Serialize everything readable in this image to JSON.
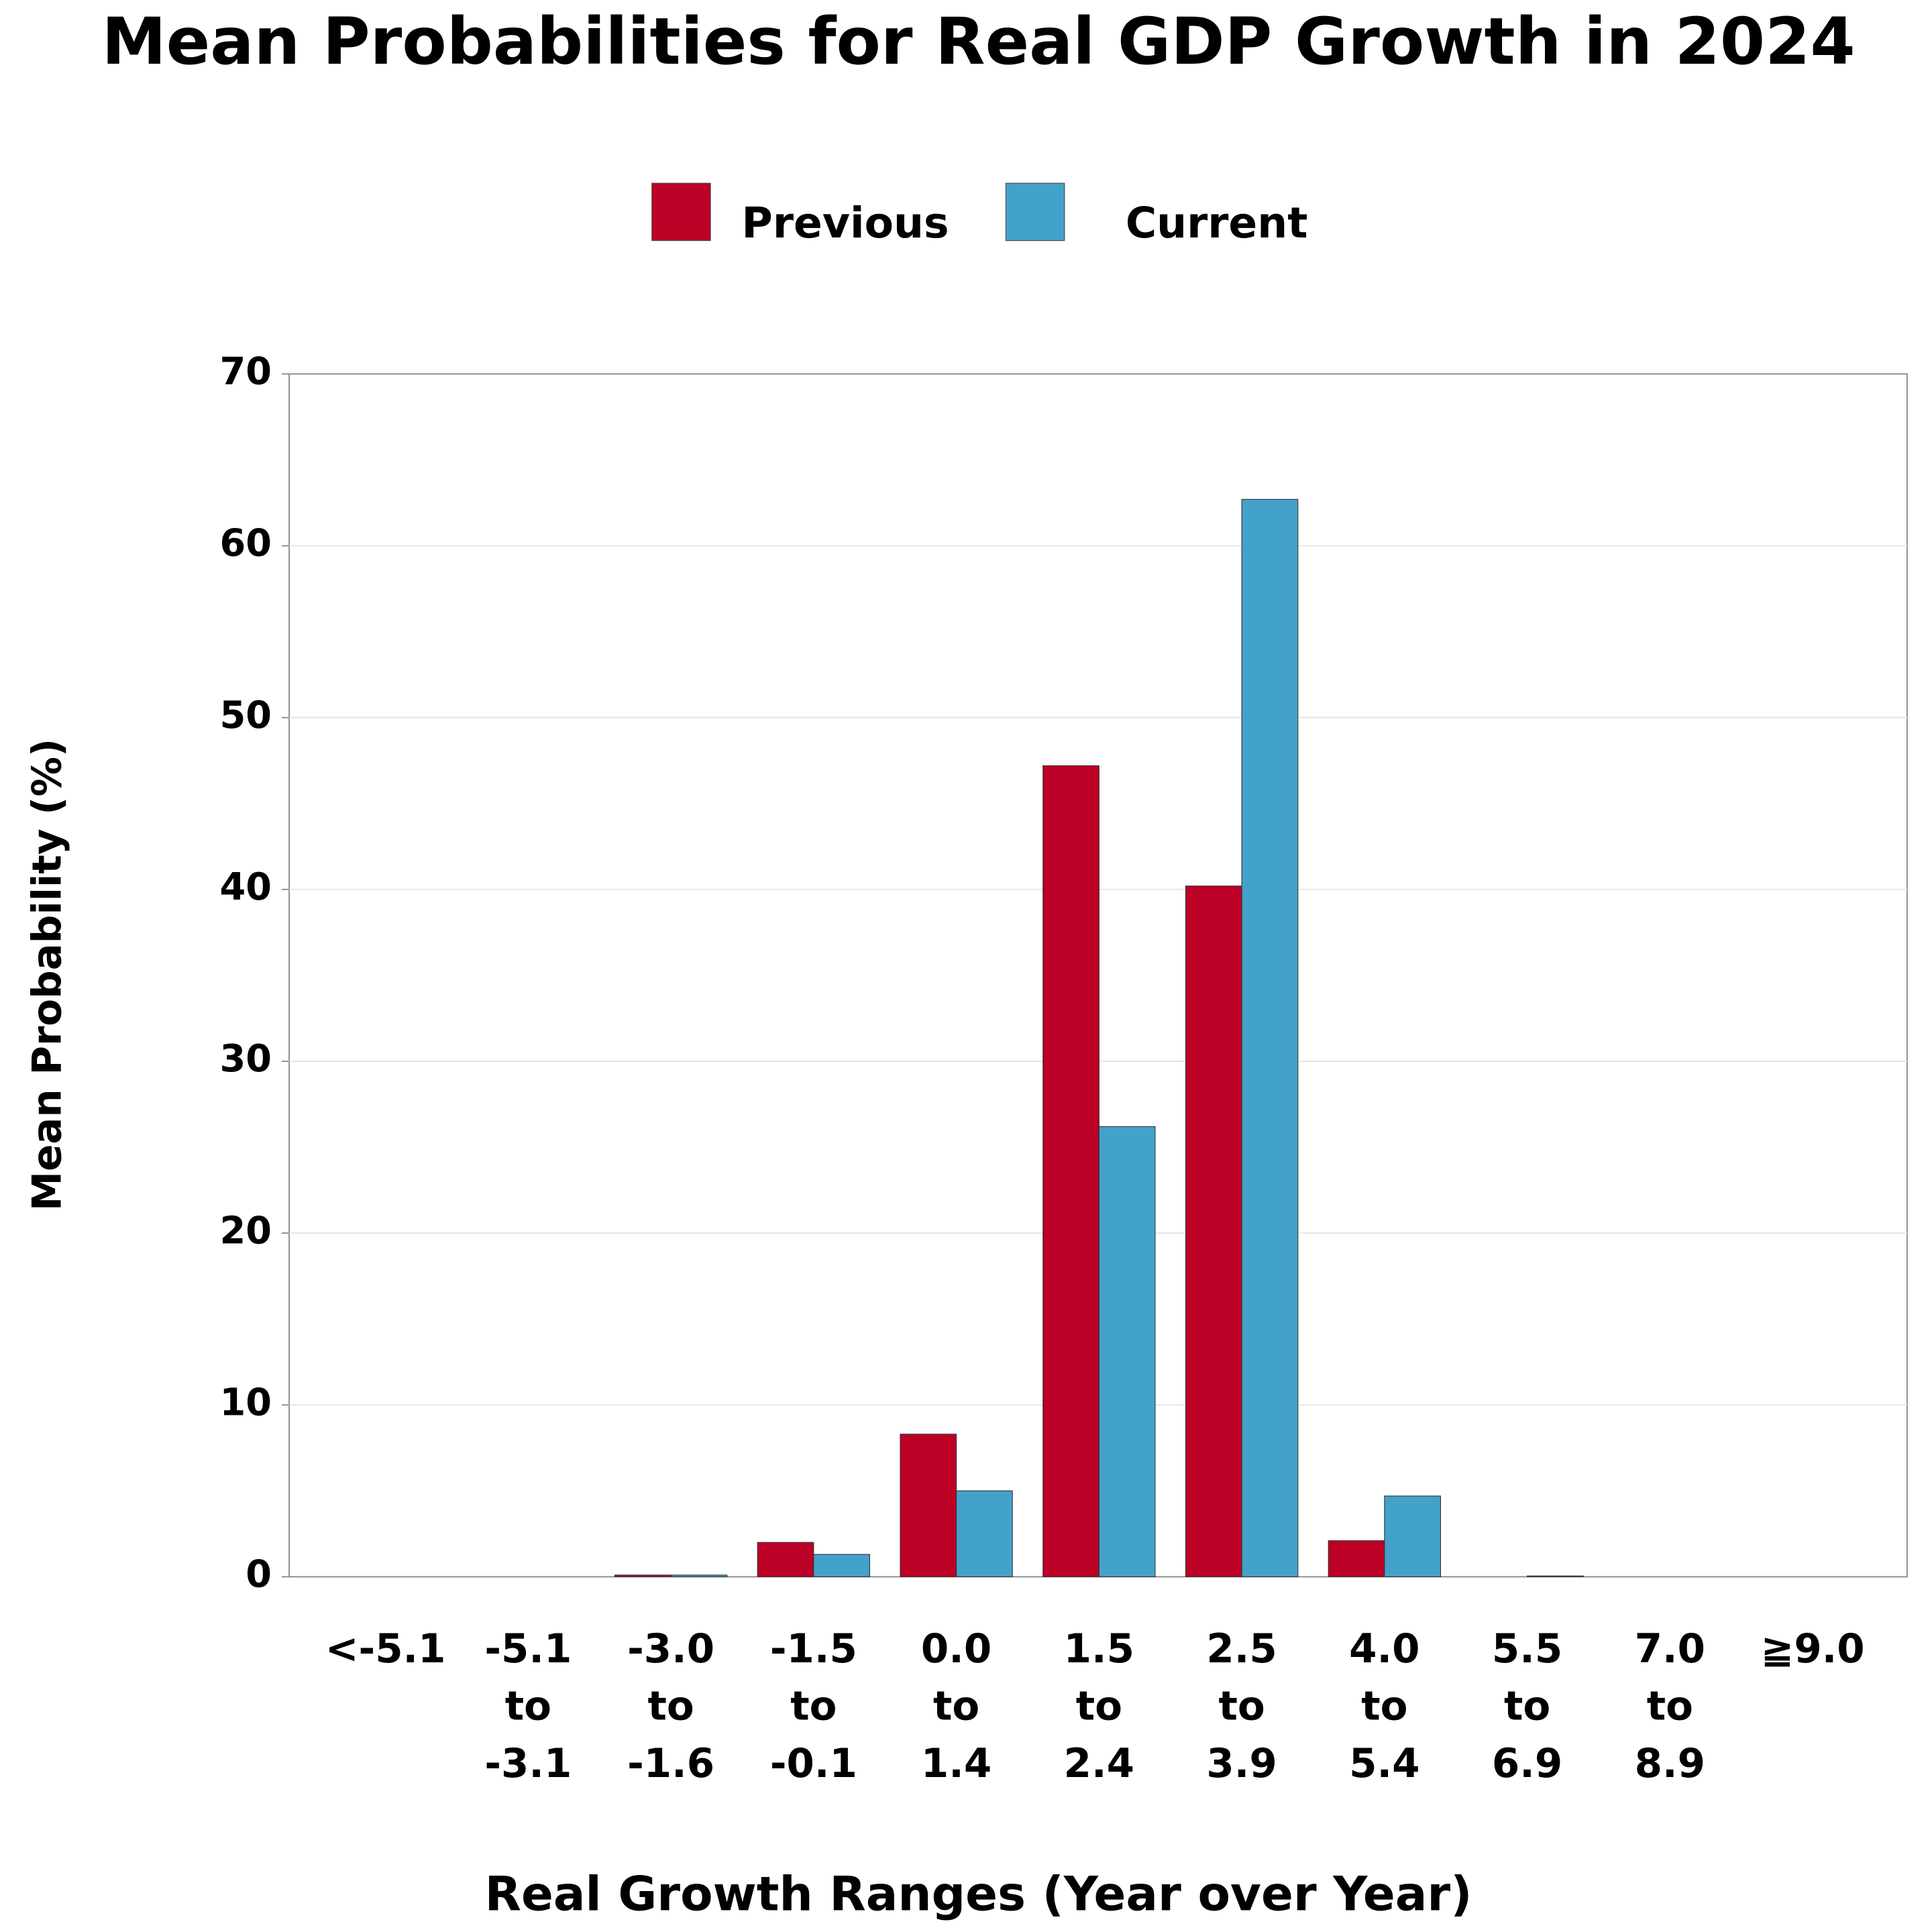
{
  "chart_data": {
    "type": "bar",
    "title": "Mean Probabilities for Real GDP Growth in 2024",
    "x_label": "Real Growth Ranges (Year over Year)",
    "y_label": "Mean Probability (%)",
    "categories": [
      [
        "<-5.1"
      ],
      [
        "-5.1",
        "to",
        "-3.1"
      ],
      [
        "-3.0",
        "to",
        "-1.6"
      ],
      [
        "-1.5",
        "to",
        "-0.1"
      ],
      [
        "0.0",
        "to",
        "1.4"
      ],
      [
        "1.5",
        "to",
        "2.4"
      ],
      [
        "2.5",
        "to",
        "3.9"
      ],
      [
        "4.0",
        "to",
        "5.4"
      ],
      [
        "5.5",
        "to",
        "6.9"
      ],
      [
        "7.0",
        "to",
        "8.9"
      ],
      [
        "≧9.0"
      ]
    ],
    "series": [
      {
        "name": "Previous",
        "color": "#bd0026",
        "values": [
          0,
          0,
          0.1,
          2.0,
          8.3,
          47.2,
          40.2,
          2.1,
          0,
          0,
          0
        ]
      },
      {
        "name": "Current",
        "color": "#43a2ca",
        "values": [
          0,
          0,
          0.1,
          1.3,
          5.0,
          26.2,
          62.7,
          4.7,
          0.05,
          0,
          0
        ]
      }
    ],
    "ylim": [
      0,
      70
    ],
    "yticks": [
      0,
      10,
      20,
      30,
      40,
      50,
      60,
      70
    ],
    "grid": true,
    "legend": "top"
  }
}
